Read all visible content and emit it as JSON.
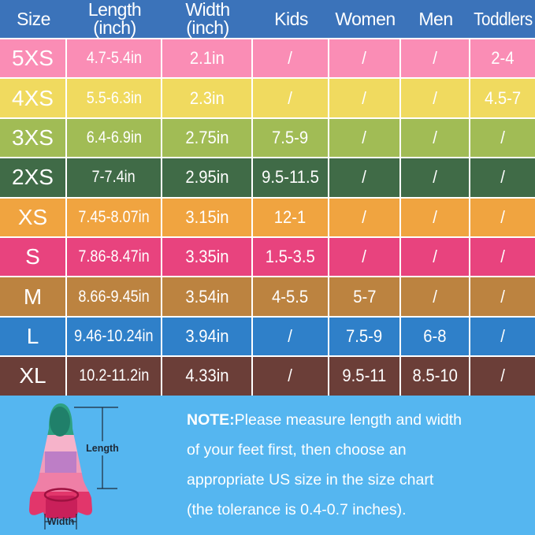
{
  "table": {
    "header_bg": "#3B73BA",
    "columns": [
      {
        "label": "Size",
        "sub": ""
      },
      {
        "label": "Length",
        "sub": "(inch)"
      },
      {
        "label": "Width",
        "sub": "(inch)"
      },
      {
        "label": "Kids",
        "sub": ""
      },
      {
        "label": "Women",
        "sub": ""
      },
      {
        "label": "Men",
        "sub": ""
      },
      {
        "label": "Toddlers",
        "sub": ""
      }
    ],
    "rows": [
      {
        "size": "5XS",
        "length": "4.7-5.4in",
        "width": "2.1in",
        "kids": "/",
        "women": "/",
        "men": "/",
        "toddlers": "2-4",
        "color": "#FA8DB5"
      },
      {
        "size": "4XS",
        "length": "5.5-6.3in",
        "width": "2.3in",
        "kids": "/",
        "women": "/",
        "men": "/",
        "toddlers": "4.5-7",
        "color": "#F0DA5F"
      },
      {
        "size": "3XS",
        "length": "6.4-6.9in",
        "width": "2.75in",
        "kids": "7.5-9",
        "women": "/",
        "men": "/",
        "toddlers": "/",
        "color": "#A1BC55"
      },
      {
        "size": "2XS",
        "length": "7-7.4in",
        "width": "2.95in",
        "kids": "9.5-11.5",
        "women": "/",
        "men": "/",
        "toddlers": "/",
        "color": "#406B47"
      },
      {
        "size": "XS",
        "length": "7.45-8.07in",
        "width": "3.15in",
        "kids": "12-1",
        "women": "/",
        "men": "/",
        "toddlers": "/",
        "color": "#F0A440"
      },
      {
        "size": "S",
        "length": "7.86-8.47in",
        "width": "3.35in",
        "kids": "1.5-3.5",
        "women": "/",
        "men": "/",
        "toddlers": "/",
        "color": "#E8437E"
      },
      {
        "size": "M",
        "length": "8.66-9.45in",
        "width": "3.54in",
        "kids": "4-5.5",
        "women": "5-7",
        "men": "/",
        "toddlers": "/",
        "color": "#BC8340"
      },
      {
        "size": "L",
        "length": "9.46-10.24in",
        "width": "3.94in",
        "kids": "/",
        "women": "7.5-9",
        "men": "6-8",
        "toddlers": "/",
        "color": "#2F80C9"
      },
      {
        "size": "XL",
        "length": "10.2-11.2in",
        "width": "4.33in",
        "kids": "/",
        "women": "9.5-11",
        "men": "8.5-10",
        "toddlers": "/",
        "color": "#6B3E38"
      }
    ]
  },
  "note": {
    "bold": "NOTE:",
    "line1": "Please measure length and width",
    "line2": "of your feet first, then choose an",
    "line3": "appropriate US size in the size chart",
    "line4": "(the tolerance is 0.4-0.7 inches)."
  },
  "diagram": {
    "length_label": "Length",
    "width_label": "Width"
  },
  "colors": {
    "page_bg": "#55B6F0",
    "separator": "#FFFFFF",
    "header_text": "#FFFFFF",
    "cell_text": "#FFFFFF",
    "note_text": "#FFFFFF"
  }
}
